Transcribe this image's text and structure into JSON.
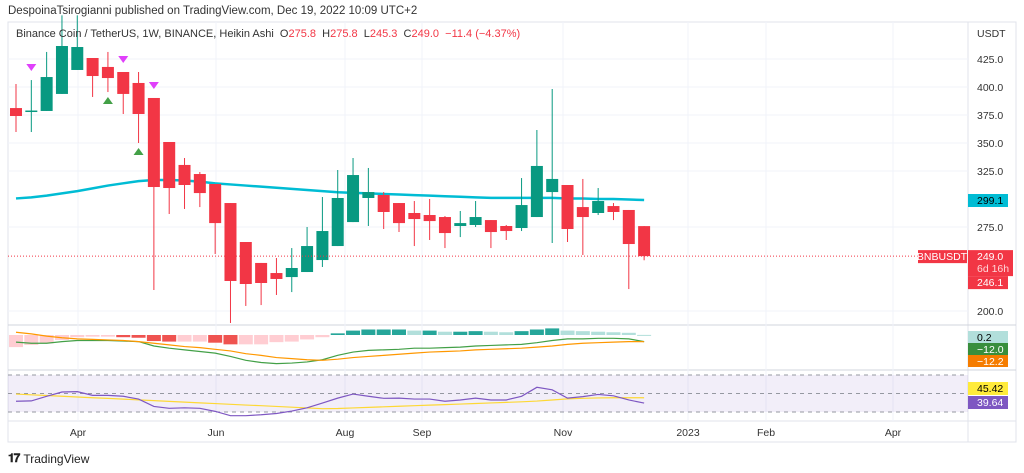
{
  "header": {
    "text": "DespoinaTsirogianni published on TradingView.com, Dec 19, 2022 10:09 UTC+2"
  },
  "legend": {
    "symbol": "Binance Coin / TetherUS, 1W, BINANCE, Heikin Ashi",
    "o_label": "O",
    "o": "275.8",
    "h_label": "H",
    "h": "275.8",
    "l_label": "L",
    "l": "245.3",
    "c_label": "C",
    "c": "249.0",
    "change": "−11.4 (−4.37%)"
  },
  "footer": {
    "brand": "TradingView"
  },
  "colors": {
    "up": "#089981",
    "down": "#f23645",
    "ma": "#00bcd4",
    "macd": "#43a047",
    "signal": "#ff9800",
    "rsi": "#7e57c2",
    "rsi_ma": "#fdd835"
  },
  "chart_data": [
    {
      "type": "candlestick",
      "pane": "price",
      "currency": "USDT",
      "yticks": [
        "425.0",
        "400.0",
        "375.0",
        "350.0",
        "325.0",
        "275.0",
        "200.0"
      ],
      "ytick_values": [
        425,
        400,
        375,
        350,
        325,
        275,
        200
      ],
      "ylim": [
        180,
        470
      ],
      "xticks": [
        "Apr",
        "Jun",
        "Aug",
        "Sep",
        "Nov",
        "2023",
        "Feb",
        "Apr"
      ],
      "ohlc": [
        [
          381.2,
          402.7,
          359.8,
          374.1
        ],
        [
          378.6,
          406.2,
          359.8,
          379.0
        ],
        [
          378.6,
          431.3,
          378.6,
          408.9
        ],
        [
          393.8,
          464.0,
          393.8,
          436.6
        ],
        [
          415.2,
          464.0,
          415.2,
          435.7
        ],
        [
          425.9,
          425.9,
          391.1,
          409.8
        ],
        [
          417.9,
          431.3,
          395.5,
          408.0
        ],
        [
          413.4,
          413.4,
          375.9,
          393.8
        ],
        [
          403.6,
          413.4,
          350.0,
          375.9
        ],
        [
          390.2,
          390.2,
          218.7,
          310.7
        ],
        [
          350.9,
          350.9,
          286.6,
          309.8
        ],
        [
          330.4,
          336.6,
          291.1,
          312.5
        ],
        [
          322.3,
          324.1,
          292.8,
          305.3
        ],
        [
          313.4,
          313.4,
          250.9,
          278.5
        ],
        [
          296.4,
          296.4,
          189.3,
          226.8
        ],
        [
          261.6,
          261.6,
          204.5,
          224.1
        ],
        [
          242.9,
          242.9,
          205.3,
          225.0
        ],
        [
          233.9,
          247.3,
          214.3,
          228.6
        ],
        [
          230.3,
          256.2,
          216.9,
          238.4
        ],
        [
          234.8,
          275.0,
          234.8,
          258.0
        ],
        [
          245.5,
          301.8,
          239.3,
          271.4
        ],
        [
          258.0,
          325.9,
          258.0,
          300.9
        ],
        [
          279.4,
          336.6,
          279.4,
          321.4
        ],
        [
          300.9,
          327.7,
          275.9,
          306.2
        ],
        [
          303.6,
          306.2,
          273.2,
          288.4
        ],
        [
          296.4,
          296.4,
          270.5,
          278.5
        ],
        [
          287.5,
          298.2,
          258.0,
          282.1
        ],
        [
          285.7,
          300.0,
          263.4,
          280.3
        ],
        [
          283.9,
          284.8,
          256.2,
          269.6
        ],
        [
          275.9,
          289.3,
          266.0,
          278.5
        ],
        [
          276.8,
          298.2,
          275.0,
          283.9
        ],
        [
          281.2,
          281.2,
          256.2,
          270.5
        ],
        [
          275.9,
          276.8,
          263.4,
          271.4
        ],
        [
          274.1,
          318.7,
          271.4,
          294.6
        ],
        [
          283.9,
          361.6,
          283.9,
          329.5
        ],
        [
          306.2,
          398.2,
          260.7,
          317.9
        ],
        [
          312.5,
          312.5,
          261.6,
          273.2
        ],
        [
          292.8,
          317.9,
          250.0,
          283.9
        ],
        [
          287.5,
          309.8,
          285.7,
          298.2
        ],
        [
          293.7,
          296.4,
          281.2,
          288.4
        ],
        [
          290.2,
          290.2,
          219.6,
          259.8
        ],
        [
          275.8,
          275.8,
          245.3,
          249.0
        ]
      ],
      "ma": [
        300.5,
        301.5,
        303,
        305,
        307,
        309.5,
        312,
        314,
        316,
        317,
        317,
        316.5,
        315.5,
        314,
        313,
        312,
        311,
        310,
        309,
        308,
        307,
        306,
        305.5,
        305,
        304.5,
        304,
        303.5,
        303,
        302.5,
        302,
        301.5,
        301,
        301,
        301,
        301,
        301,
        300.5,
        300.5,
        300,
        300,
        299.5,
        299.1
      ],
      "signals_down": [
        1,
        7,
        9
      ],
      "signals_up": [
        6,
        8
      ],
      "last_price_label": {
        "symbol": "BNBUSDT",
        "price": "249.0",
        "countdown": "6d 16h",
        "secondary": "246.1"
      },
      "ma_label": "299.1"
    },
    {
      "type": "macd",
      "pane": "macd",
      "histogram": [
        -22,
        -18,
        -15,
        -9,
        -4,
        -3,
        -3,
        -4,
        -5,
        -11,
        -12,
        -12,
        -12,
        -14,
        -17,
        -17,
        -17,
        -13,
        -12,
        -8,
        -4,
        3,
        8,
        10,
        10,
        10,
        8,
        8,
        6,
        6,
        7,
        6,
        5,
        7,
        10,
        12,
        8,
        7,
        6,
        5,
        4,
        0.2
      ],
      "macd": [
        -13,
        -15,
        -15,
        -12,
        -10,
        -10,
        -10,
        -11,
        -12,
        -20,
        -24,
        -27,
        -30,
        -33,
        -39,
        -46,
        -50,
        -52,
        -51,
        -49,
        -45,
        -37,
        -31,
        -28,
        -27,
        -26,
        -24,
        -24,
        -23,
        -22,
        -20,
        -19,
        -18,
        -17,
        -14,
        -10,
        -7,
        -7,
        -6,
        -6,
        -7,
        -12
      ],
      "signal": [
        5,
        2,
        -2,
        -5,
        -7,
        -8,
        -9,
        -10,
        -12,
        -15,
        -18,
        -21,
        -23,
        -26,
        -29,
        -34,
        -37,
        -41,
        -43,
        -45,
        -46,
        -44,
        -41,
        -39,
        -37,
        -35,
        -33,
        -31,
        -30,
        -29,
        -27,
        -26,
        -25,
        -24,
        -22,
        -20,
        -17,
        -15,
        -14,
        -13,
        -12,
        -12.2
      ],
      "labels": {
        "histogram": "0.2",
        "macd": "−12.0",
        "signal": "−12.2"
      }
    },
    {
      "type": "rsi",
      "pane": "rsi",
      "bands": [
        70,
        50,
        30
      ],
      "rsi": [
        41.6,
        42,
        47,
        51.6,
        52,
        48,
        48,
        47,
        44,
        36,
        34,
        34.5,
        34,
        30.7,
        26,
        26,
        27,
        28.4,
        31,
        34.5,
        39.7,
        45,
        49.4,
        47,
        44.8,
        45,
        44,
        44,
        41.6,
        43,
        45,
        43,
        43,
        47,
        56.7,
        54,
        45,
        46.6,
        49,
        47.5,
        43,
        39.64
      ],
      "rsi_ma": [
        49.4,
        48.6,
        47.8,
        47.0,
        46.2,
        45.4,
        44.7,
        43.9,
        43.1,
        42.3,
        41.5,
        40.7,
        39.9,
        39.1,
        38.3,
        37.5,
        36.8,
        36,
        35.2,
        34.4,
        33.6,
        33.8,
        34.4,
        35.0,
        35.6,
        36.2,
        36.8,
        37.4,
        38.0,
        38.6,
        39.2,
        39.8,
        40.4,
        41.0,
        41.8,
        43.0,
        44.2,
        44.8,
        45.2,
        45.4,
        45.4,
        45.42
      ],
      "labels": {
        "rsi_ma": "45.42",
        "rsi": "39.64"
      }
    }
  ]
}
